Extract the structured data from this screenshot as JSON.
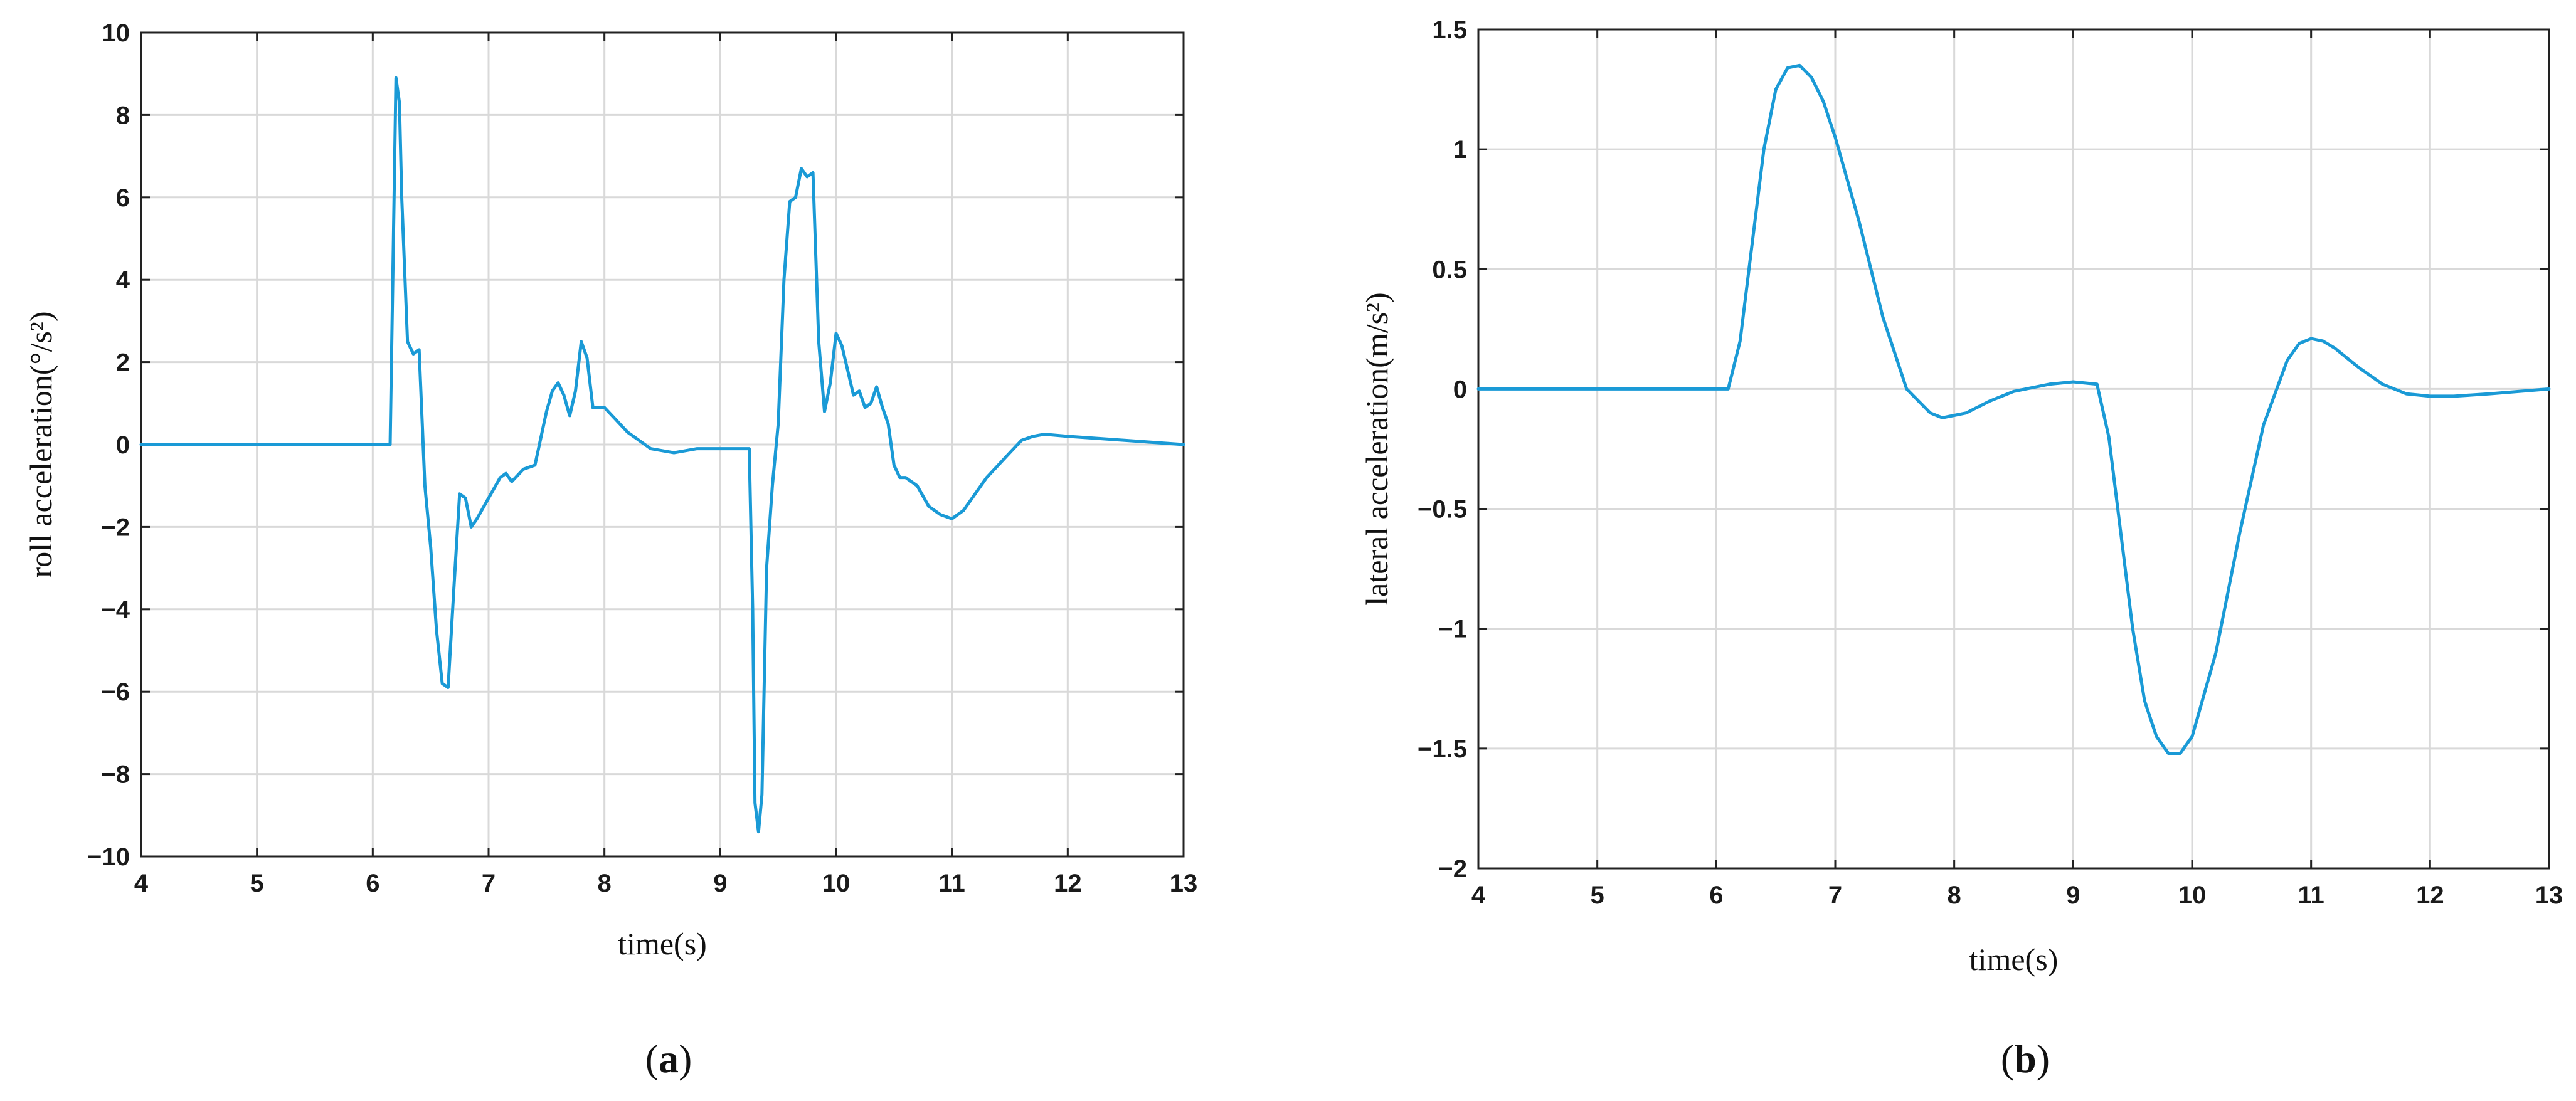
{
  "chart_data": [
    {
      "type": "line",
      "panel_label": "a",
      "xlabel": "time(s)",
      "ylabel": "roll acceleration(°/s²)",
      "xlim": [
        4,
        13
      ],
      "ylim": [
        -10,
        10
      ],
      "xticks": [
        4,
        5,
        6,
        7,
        8,
        9,
        10,
        11,
        12,
        13
      ],
      "yticks": [
        -10,
        -8,
        -6,
        -4,
        -2,
        0,
        2,
        4,
        6,
        8,
        10
      ],
      "grid": true,
      "color": "#1a9ad6",
      "series": [
        {
          "x": [
            4,
            6.1,
            6.15,
            6.17,
            6.2,
            6.23,
            6.25,
            6.3,
            6.35,
            6.4,
            6.45,
            6.5,
            6.55,
            6.6,
            6.65,
            6.7,
            6.75,
            6.8,
            6.85,
            6.9,
            7.0,
            7.1,
            7.15,
            7.2,
            7.3,
            7.4,
            7.5,
            7.55,
            7.6,
            7.65,
            7.7,
            7.75,
            7.8,
            7.85,
            7.9,
            8.0,
            8.2,
            8.4,
            8.6,
            8.8,
            9.1,
            9.25,
            9.28,
            9.3,
            9.33,
            9.36,
            9.4,
            9.45,
            9.5,
            9.55,
            9.6,
            9.65,
            9.7,
            9.75,
            9.8,
            9.85,
            9.9,
            9.95,
            10.0,
            10.05,
            10.1,
            10.15,
            10.2,
            10.25,
            10.3,
            10.35,
            10.4,
            10.45,
            10.5,
            10.55,
            10.6,
            10.7,
            10.8,
            10.9,
            11.0,
            11.1,
            11.2,
            11.3,
            11.4,
            11.5,
            11.6,
            11.7,
            11.8,
            12.0,
            12.5,
            13.0
          ],
          "y": [
            0,
            0,
            0,
            3.5,
            8.9,
            8.3,
            6.0,
            2.5,
            2.2,
            2.3,
            -1.0,
            -2.5,
            -4.5,
            -5.8,
            -5.9,
            -3.5,
            -1.2,
            -1.3,
            -2.0,
            -1.8,
            -1.3,
            -0.8,
            -0.7,
            -0.9,
            -0.6,
            -0.5,
            0.8,
            1.3,
            1.5,
            1.2,
            0.7,
            1.3,
            2.5,
            2.1,
            0.9,
            0.9,
            0.3,
            -0.1,
            -0.2,
            -0.1,
            -0.1,
            -0.1,
            -4.0,
            -8.7,
            -9.4,
            -8.5,
            -3.0,
            -1.0,
            0.5,
            4.0,
            5.9,
            6.0,
            6.7,
            6.5,
            6.6,
            2.5,
            0.8,
            1.5,
            2.7,
            2.4,
            1.8,
            1.2,
            1.3,
            0.9,
            1.0,
            1.4,
            0.9,
            0.5,
            -0.5,
            -0.8,
            -0.8,
            -1.0,
            -1.5,
            -1.7,
            -1.8,
            -1.6,
            -1.2,
            -0.8,
            -0.5,
            -0.2,
            0.1,
            0.2,
            0.25,
            0.2,
            0.1,
            0
          ]
        }
      ]
    },
    {
      "type": "line",
      "panel_label": "b",
      "xlabel": "time(s)",
      "ylabel": "lateral acceleration(m/s²)",
      "xlim": [
        4,
        13
      ],
      "ylim": [
        -2,
        1.5
      ],
      "xticks": [
        4,
        5,
        6,
        7,
        8,
        9,
        10,
        11,
        12,
        13
      ],
      "yticks": [
        -2,
        -1.5,
        -1,
        -0.5,
        0,
        0.5,
        1,
        1.5
      ],
      "grid": true,
      "color": "#1a9ad6",
      "series": [
        {
          "x": [
            4,
            6.1,
            6.2,
            6.3,
            6.4,
            6.5,
            6.6,
            6.7,
            6.8,
            6.9,
            7.0,
            7.2,
            7.4,
            7.6,
            7.8,
            7.9,
            8.0,
            8.1,
            8.3,
            8.5,
            8.8,
            9.0,
            9.2,
            9.3,
            9.4,
            9.5,
            9.6,
            9.7,
            9.8,
            9.9,
            10.0,
            10.2,
            10.4,
            10.6,
            10.8,
            10.9,
            11.0,
            11.1,
            11.2,
            11.4,
            11.6,
            11.8,
            12.0,
            12.2,
            12.5,
            13.0
          ],
          "y": [
            0,
            0,
            0.2,
            0.6,
            1.0,
            1.25,
            1.34,
            1.35,
            1.3,
            1.2,
            1.05,
            0.7,
            0.3,
            0.0,
            -0.1,
            -0.12,
            -0.11,
            -0.1,
            -0.05,
            -0.01,
            0.02,
            0.03,
            0.02,
            -0.2,
            -0.6,
            -1.0,
            -1.3,
            -1.45,
            -1.52,
            -1.52,
            -1.45,
            -1.1,
            -0.6,
            -0.15,
            0.12,
            0.19,
            0.21,
            0.2,
            0.17,
            0.09,
            0.02,
            -0.02,
            -0.03,
            -0.03,
            -0.02,
            0
          ]
        }
      ]
    }
  ]
}
